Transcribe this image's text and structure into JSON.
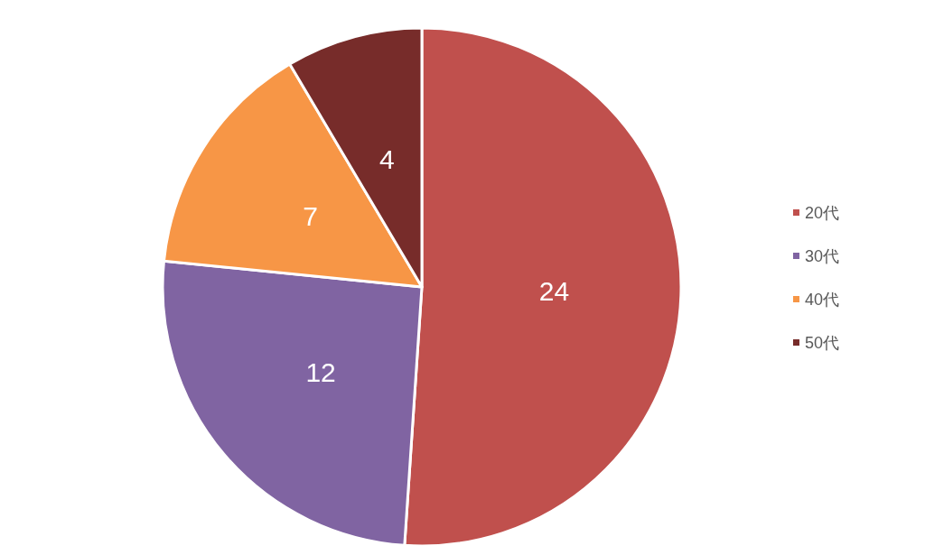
{
  "chart_data": {
    "type": "pie",
    "categories": [
      "20代",
      "30代",
      "40代",
      "50代"
    ],
    "values": [
      24,
      12,
      7,
      4
    ],
    "colors": [
      "#c0504d",
      "#8064a2",
      "#f79646",
      "#772c2a"
    ],
    "data_labels": true,
    "legend": "right"
  }
}
